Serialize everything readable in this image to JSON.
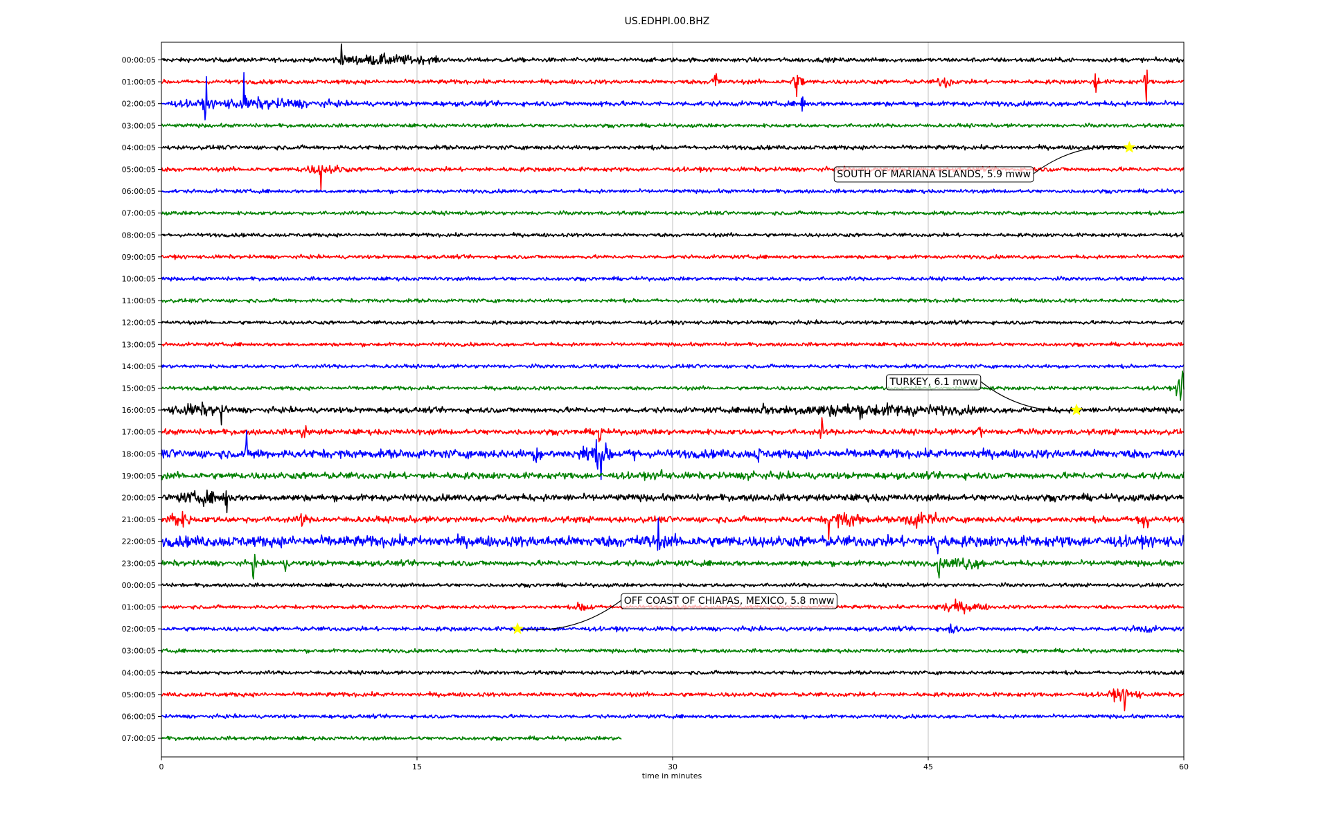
{
  "chart_data": {
    "type": "line",
    "title": "US.EDHPI.00.BHZ",
    "xlabel": "time in minutes",
    "ylabel": "",
    "xlim": [
      0,
      60
    ],
    "x_ticks": [
      0,
      15,
      30,
      45,
      60
    ],
    "grid": "vertical",
    "row_labels": [
      "00:00:05",
      "01:00:05",
      "02:00:05",
      "03:00:05",
      "04:00:05",
      "05:00:05",
      "06:00:05",
      "07:00:05",
      "08:00:05",
      "09:00:05",
      "10:00:05",
      "11:00:05",
      "12:00:05",
      "13:00:05",
      "14:00:05",
      "15:00:05",
      "16:00:05",
      "17:00:05",
      "18:00:05",
      "19:00:05",
      "20:00:05",
      "21:00:05",
      "22:00:05",
      "23:00:05",
      "00:00:05",
      "01:00:05",
      "02:00:05",
      "03:00:05",
      "04:00:05",
      "05:00:05",
      "06:00:05",
      "07:00:05"
    ],
    "row_colors": [
      "#000000",
      "#ff0000",
      "#0000ff",
      "#008000"
    ],
    "last_row_end_minute": 27,
    "noise_level": [
      0.35,
      0.35,
      0.4,
      0.3,
      0.35,
      0.35,
      0.3,
      0.3,
      0.3,
      0.3,
      0.3,
      0.3,
      0.3,
      0.3,
      0.3,
      0.3,
      0.45,
      0.45,
      0.7,
      0.55,
      0.55,
      0.5,
      0.9,
      0.45,
      0.3,
      0.3,
      0.35,
      0.3,
      0.3,
      0.35,
      0.3,
      0.3
    ],
    "bursts": [
      {
        "row": 0,
        "start": 9.5,
        "end": 16.5,
        "amp": 1.0,
        "spike": 10.6,
        "spike_amp": 3.5
      },
      {
        "row": 1,
        "start": 32.2,
        "end": 32.8,
        "amp": 1.5,
        "spike": 32.5,
        "spike_amp": 1.5
      },
      {
        "row": 1,
        "start": 36.8,
        "end": 37.8,
        "amp": 1.5,
        "spike": 37.3,
        "spike_amp": 1.5
      },
      {
        "row": 1,
        "start": 45.5,
        "end": 46.5,
        "amp": 1.2,
        "spike": null,
        "spike_amp": 0
      },
      {
        "row": 1,
        "start": 54.7,
        "end": 55.0,
        "amp": 2.0,
        "spike": 54.8,
        "spike_amp": 2.0
      },
      {
        "row": 1,
        "start": 57.6,
        "end": 57.9,
        "amp": 2.0,
        "spike": 57.8,
        "spike_amp": 2.0
      },
      {
        "row": 2,
        "start": 0.5,
        "end": 10.5,
        "amp": 1.0,
        "spike": 4.9,
        "spike_amp": 3.0
      },
      {
        "row": 2,
        "start": 2.5,
        "end": 2.8,
        "amp": 2.0,
        "spike": 2.6,
        "spike_amp": 3.0
      },
      {
        "row": 2,
        "start": 25.5,
        "end": 26.5,
        "amp": 0.8,
        "spike": null,
        "spike_amp": 0
      },
      {
        "row": 2,
        "start": 37.5,
        "end": 37.8,
        "amp": 1.0,
        "spike": 37.6,
        "spike_amp": 2.5
      },
      {
        "row": 5,
        "start": 8.0,
        "end": 11.0,
        "amp": 1.0,
        "spike": 9.3,
        "spike_amp": 2.0
      },
      {
        "row": 15,
        "start": 59.5,
        "end": 60.0,
        "amp": 2.0,
        "spike": 59.9,
        "spike_amp": 2.5
      },
      {
        "row": 16,
        "start": 0.3,
        "end": 4.0,
        "amp": 1.2,
        "spike": 3.5,
        "spike_amp": 2.0
      },
      {
        "row": 16,
        "start": 34.0,
        "end": 48.5,
        "amp": 1.2,
        "spike": 35.3,
        "spike_amp": 2.0
      },
      {
        "row": 17,
        "start": 8.2,
        "end": 8.6,
        "amp": 1.8,
        "spike": 8.4,
        "spike_amp": 2.0
      },
      {
        "row": 17,
        "start": 25.5,
        "end": 25.9,
        "amp": 2.0,
        "spike": 25.7,
        "spike_amp": 2.0
      },
      {
        "row": 17,
        "start": 38.6,
        "end": 38.9,
        "amp": 1.5,
        "spike": 38.7,
        "spike_amp": 1.5
      },
      {
        "row": 17,
        "start": 47.8,
        "end": 48.2,
        "amp": 1.5,
        "spike": 48.0,
        "spike_amp": 1.5
      },
      {
        "row": 17,
        "start": 50.3,
        "end": 50.6,
        "amp": 1.5,
        "spike": 50.4,
        "spike_amp": 1.5
      },
      {
        "row": 18,
        "start": 5.0,
        "end": 6.0,
        "amp": 1.2,
        "spike": 5.0,
        "spike_amp": 2.0
      },
      {
        "row": 18,
        "start": 21.5,
        "end": 22.5,
        "amp": 1.2,
        "spike": 22.0,
        "spike_amp": 2.0
      },
      {
        "row": 18,
        "start": 24.5,
        "end": 26.5,
        "amp": 2.2,
        "spike": 25.8,
        "spike_amp": 3.0
      },
      {
        "row": 18,
        "start": 27.5,
        "end": 28.0,
        "amp": 1.2,
        "spike": 27.8,
        "spike_amp": 1.5
      },
      {
        "row": 18,
        "start": 34.8,
        "end": 35.4,
        "amp": 1.2,
        "spike": 35.0,
        "spike_amp": 1.5
      },
      {
        "row": 18,
        "start": 47.8,
        "end": 48.1,
        "amp": 1.2,
        "spike": 47.9,
        "spike_amp": 1.5
      },
      {
        "row": 19,
        "start": 2.8,
        "end": 15.0,
        "amp": 0.6,
        "spike": null,
        "spike_amp": 0
      },
      {
        "row": 19,
        "start": 26.5,
        "end": 31.5,
        "amp": 0.6,
        "spike": 29.3,
        "spike_amp": 1.5
      },
      {
        "row": 19,
        "start": 34.3,
        "end": 35.0,
        "amp": 1.2,
        "spike": 34.7,
        "spike_amp": 1.5
      },
      {
        "row": 19,
        "start": 40.8,
        "end": 53.0,
        "amp": 0.6,
        "spike": null,
        "spike_amp": 0
      },
      {
        "row": 20,
        "start": 0.5,
        "end": 4.5,
        "amp": 1.2,
        "spike": 3.8,
        "spike_amp": 2.0
      },
      {
        "row": 20,
        "start": 31.8,
        "end": 52.0,
        "amp": 0.6,
        "spike": null,
        "spike_amp": 0
      },
      {
        "row": 21,
        "start": 0.3,
        "end": 1.8,
        "amp": 1.5,
        "spike": 0.6,
        "spike_amp": 1.5
      },
      {
        "row": 21,
        "start": 8.1,
        "end": 8.5,
        "amp": 1.5,
        "spike": 8.3,
        "spike_amp": 1.5
      },
      {
        "row": 21,
        "start": 38.8,
        "end": 41.5,
        "amp": 1.5,
        "spike": 39.2,
        "spike_amp": 2.0
      },
      {
        "row": 21,
        "start": 43.3,
        "end": 45.5,
        "amp": 1.5,
        "spike": 45.4,
        "spike_amp": 2.0
      },
      {
        "row": 21,
        "start": 57.2,
        "end": 58.0,
        "amp": 2.0,
        "spike": 57.6,
        "spike_amp": 2.5
      },
      {
        "row": 22,
        "start": 0.0,
        "end": 60.0,
        "amp": 0.6,
        "spike": null,
        "spike_amp": 0
      },
      {
        "row": 22,
        "start": 24.5,
        "end": 33.0,
        "amp": 1.2,
        "spike": 29.1,
        "spike_amp": 2.5
      },
      {
        "row": 22,
        "start": 45.0,
        "end": 46.0,
        "amp": 1.5,
        "spike": 45.5,
        "spike_amp": 3.0
      },
      {
        "row": 23,
        "start": 5.3,
        "end": 5.6,
        "amp": 1.5,
        "spike": 5.4,
        "spike_amp": 1.5
      },
      {
        "row": 23,
        "start": 7.2,
        "end": 7.4,
        "amp": 1.2,
        "spike": 7.3,
        "spike_amp": 1.2
      },
      {
        "row": 23,
        "start": 45.6,
        "end": 48.5,
        "amp": 1.2,
        "spike": 45.6,
        "spike_amp": 2.0
      },
      {
        "row": 25,
        "start": 24.2,
        "end": 25.5,
        "amp": 1.0,
        "spike": null,
        "spike_amp": 0
      },
      {
        "row": 25,
        "start": 45.0,
        "end": 48.5,
        "amp": 1.0,
        "spike": 46.2,
        "spike_amp": 1.2
      },
      {
        "row": 26,
        "start": 45.8,
        "end": 46.8,
        "amp": 1.0,
        "spike": null,
        "spike_amp": 0
      },
      {
        "row": 26,
        "start": 56.8,
        "end": 58.5,
        "amp": 0.8,
        "spike": null,
        "spike_amp": 0
      },
      {
        "row": 29,
        "start": 55.5,
        "end": 57.5,
        "amp": 1.2,
        "spike": 56.5,
        "spike_amp": 1.5
      }
    ],
    "events": [
      {
        "label": "SOUTH OF MARIANA ISLANDS, 5.9 mww",
        "row": 4,
        "minute": 56.8,
        "box_minute": 39.4,
        "box_row": 5.2,
        "rad": -0.2,
        "marker_color": "#ffff00"
      },
      {
        "label": "TURKEY, 6.1 mww",
        "row": 16,
        "minute": 53.7,
        "box_minute": 42.5,
        "box_row": 14.7,
        "rad": 0.2,
        "marker_color": "#ffff00"
      },
      {
        "label": "OFF COAST OF CHIAPAS, MEXICO, 5.8 mww",
        "row": 26,
        "minute": 20.9,
        "box_minute": 26.9,
        "box_row": 24.7,
        "rad": -0.2,
        "marker_color": "#ffff00"
      }
    ]
  }
}
